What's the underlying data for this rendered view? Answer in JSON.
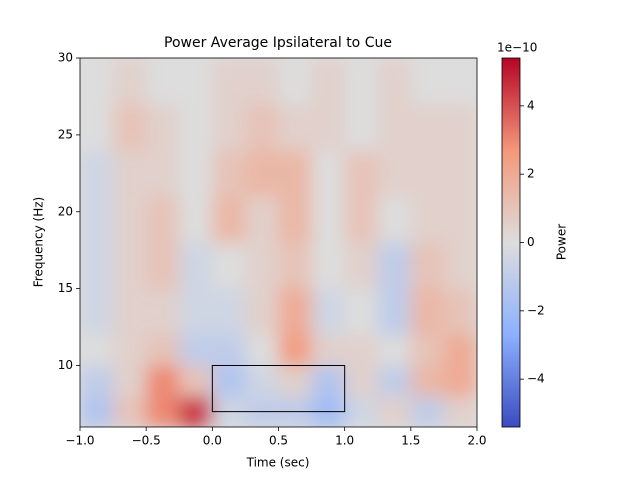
{
  "chart_data": {
    "type": "heatmap",
    "title": "Power Average Ipsilateral to Cue",
    "x_label": "Time (sec)",
    "y_label": "Frequency (Hz)",
    "colorbar_label": "Power",
    "colorbar_offset": "1e−10",
    "colormap": "coolwarm",
    "xbins": [
      -1,
      -0.75,
      -0.5,
      -0.25,
      0,
      0.25,
      0.5,
      0.75,
      1,
      1.25,
      1.5,
      1.75,
      2
    ],
    "ybins": [
      6,
      8,
      10,
      12,
      15,
      18,
      21,
      24,
      27,
      30
    ],
    "values": [
      [
        -1.5,
        1,
        3,
        4.5,
        -0.5,
        -1,
        -1,
        -2,
        -0.5,
        0.5,
        -1,
        0.5
      ],
      [
        -1,
        0.5,
        3,
        1,
        -1.5,
        -0.5,
        0.5,
        -1.5,
        0.5,
        -1,
        1.5,
        2
      ],
      [
        0,
        0.5,
        1,
        -1,
        -1,
        0,
        2.5,
        0.5,
        0.5,
        0,
        1,
        2
      ],
      [
        -0.5,
        0.5,
        0.5,
        -0.5,
        -0.5,
        0.5,
        2,
        -0.5,
        0,
        -1,
        1.5,
        1
      ],
      [
        -0.5,
        0.5,
        1,
        -0.5,
        0,
        0.5,
        1,
        0,
        0.5,
        -1,
        1,
        0.5
      ],
      [
        -0.5,
        0.5,
        1,
        0,
        1.5,
        0.5,
        1.5,
        0,
        1,
        0,
        0.5,
        0.5
      ],
      [
        -0.5,
        0.5,
        0.5,
        0,
        1,
        1.5,
        1.5,
        0,
        1,
        0.5,
        0.5,
        0.5
      ],
      [
        0,
        1,
        0.5,
        0,
        0.5,
        1,
        0.5,
        0.5,
        0,
        0.5,
        0.5,
        0.5
      ],
      [
        0,
        0.5,
        0,
        0,
        0.5,
        0.5,
        0,
        0.5,
        0,
        0.5,
        0,
        0
      ]
    ],
    "box": {
      "x": [
        0,
        1
      ],
      "y": [
        7,
        10
      ]
    },
    "xlim": [
      -1,
      2
    ],
    "ylim": [
      6,
      30
    ],
    "clim": [
      -5.4,
      5.4
    ],
    "xticks": [
      {
        "value": -1,
        "label": "−1.0"
      },
      {
        "value": -0.5,
        "label": "−0.5"
      },
      {
        "value": 0,
        "label": "0.0"
      },
      {
        "value": 0.5,
        "label": "0.5"
      },
      {
        "value": 1,
        "label": "1.0"
      },
      {
        "value": 1.5,
        "label": "1.5"
      },
      {
        "value": 2,
        "label": "2.0"
      }
    ],
    "yticks": [
      10,
      15,
      20,
      25,
      30
    ],
    "cticks": [
      {
        "value": -4,
        "label": "−4"
      },
      {
        "value": -2,
        "label": "−2"
      },
      0,
      2,
      4
    ]
  }
}
